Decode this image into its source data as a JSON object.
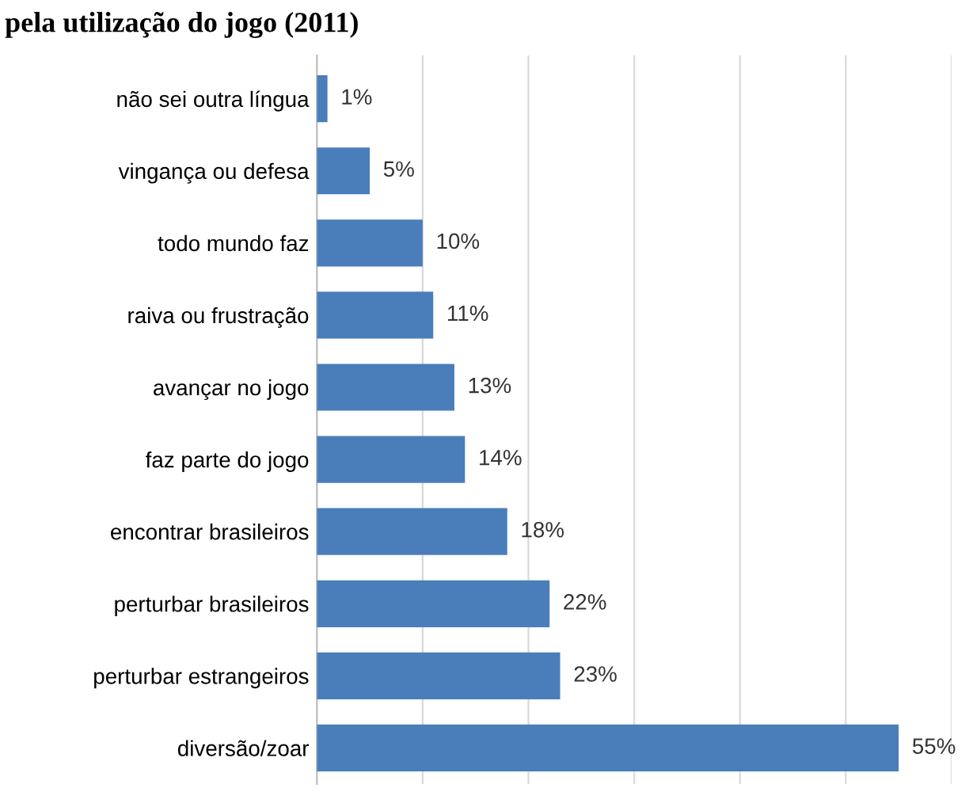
{
  "chart_data": {
    "type": "bar",
    "orientation": "horizontal",
    "title": "pela utilização do jogo (2011)",
    "categories": [
      "não sei outra língua",
      "vingança ou defesa",
      "todo mundo faz",
      "raiva ou frustração",
      "avançar no jogo",
      "faz parte do jogo",
      "encontrar brasileiros",
      "perturbar brasileiros",
      "perturbar estrangeiros",
      "diversão/zoar"
    ],
    "values": [
      1,
      5,
      10,
      11,
      13,
      14,
      18,
      22,
      23,
      55
    ],
    "value_labels": [
      "1%",
      "5%",
      "10%",
      "11%",
      "13%",
      "14%",
      "18%",
      "22%",
      "23%",
      "55%"
    ],
    "color": "#4a7ebb",
    "xlim": [
      0,
      60
    ],
    "xticks": [
      {
        "value": 0,
        "label": null
      },
      {
        "value": 10,
        "label": null
      },
      {
        "value": 20,
        "label": null
      },
      {
        "value": 30,
        "label": null
      },
      {
        "value": 40,
        "label": null
      },
      {
        "value": 50,
        "label": null
      },
      {
        "value": 60,
        "label": null
      }
    ],
    "tick_labels": "y",
    "grid": "x",
    "legend": false
  }
}
